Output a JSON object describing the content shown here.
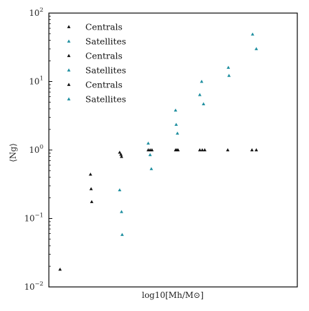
{
  "chart_data": {
    "type": "scatter",
    "xlabel": "log10[Mh/M⊙]",
    "ylabel": "⟨Ng⟩",
    "y_scale": "log",
    "ylim": [
      0.01,
      100
    ],
    "y_ticks": [
      {
        "value": 0.01,
        "mantissa": "10",
        "exponent": "−2"
      },
      {
        "value": 0.1,
        "mantissa": "10",
        "exponent": "−1"
      },
      {
        "value": 1,
        "mantissa": "10",
        "exponent": "0"
      },
      {
        "value": 10,
        "mantissa": "10",
        "exponent": "1"
      },
      {
        "value": 100,
        "mantissa": "10",
        "exponent": "2"
      }
    ],
    "x_ticks_shown": false,
    "xlim": [
      11.0,
      15.0
    ],
    "grid": false,
    "legend_position": "upper left",
    "series": [
      {
        "name": "Centrals",
        "color": "#111111",
        "points": [
          [
            11.18,
            0.018
          ],
          [
            11.67,
            0.44
          ],
          [
            11.68,
            0.27
          ],
          [
            11.69,
            0.175
          ]
        ]
      },
      {
        "name": "Satellites",
        "color": "#1f8fa0",
        "points": []
      },
      {
        "name": "Centrals",
        "color": "#111111",
        "points": [
          [
            12.14,
            0.92
          ],
          [
            12.16,
            0.86
          ],
          [
            12.17,
            0.8
          ]
        ]
      },
      {
        "name": "Satellites",
        "color": "#1f8fa0",
        "points": [
          [
            12.14,
            0.26
          ],
          [
            12.17,
            0.125
          ],
          [
            12.18,
            0.058
          ]
        ]
      },
      {
        "name": "Centrals",
        "color": "#111111",
        "points": [
          [
            12.6,
            1.0
          ],
          [
            12.63,
            1.0
          ],
          [
            12.66,
            1.0
          ],
          [
            13.04,
            1.0
          ],
          [
            13.06,
            1.0
          ],
          [
            13.08,
            1.0
          ],
          [
            13.43,
            1.0
          ],
          [
            13.47,
            1.0
          ],
          [
            13.51,
            1.0
          ],
          [
            13.88,
            1.0
          ],
          [
            14.27,
            1.0
          ],
          [
            14.34,
            1.0
          ]
        ]
      },
      {
        "name": "Satellites",
        "color": "#1f8fa0",
        "points": [
          [
            12.6,
            1.25
          ],
          [
            12.63,
            0.85
          ],
          [
            12.65,
            0.53
          ],
          [
            13.04,
            3.8
          ],
          [
            13.05,
            2.35
          ],
          [
            13.07,
            1.75
          ],
          [
            13.43,
            6.4
          ],
          [
            13.46,
            10.0
          ],
          [
            13.49,
            4.7
          ],
          [
            13.89,
            16.0
          ],
          [
            13.9,
            12.2
          ],
          [
            14.28,
            49.0
          ],
          [
            14.34,
            30.0
          ]
        ]
      }
    ]
  }
}
